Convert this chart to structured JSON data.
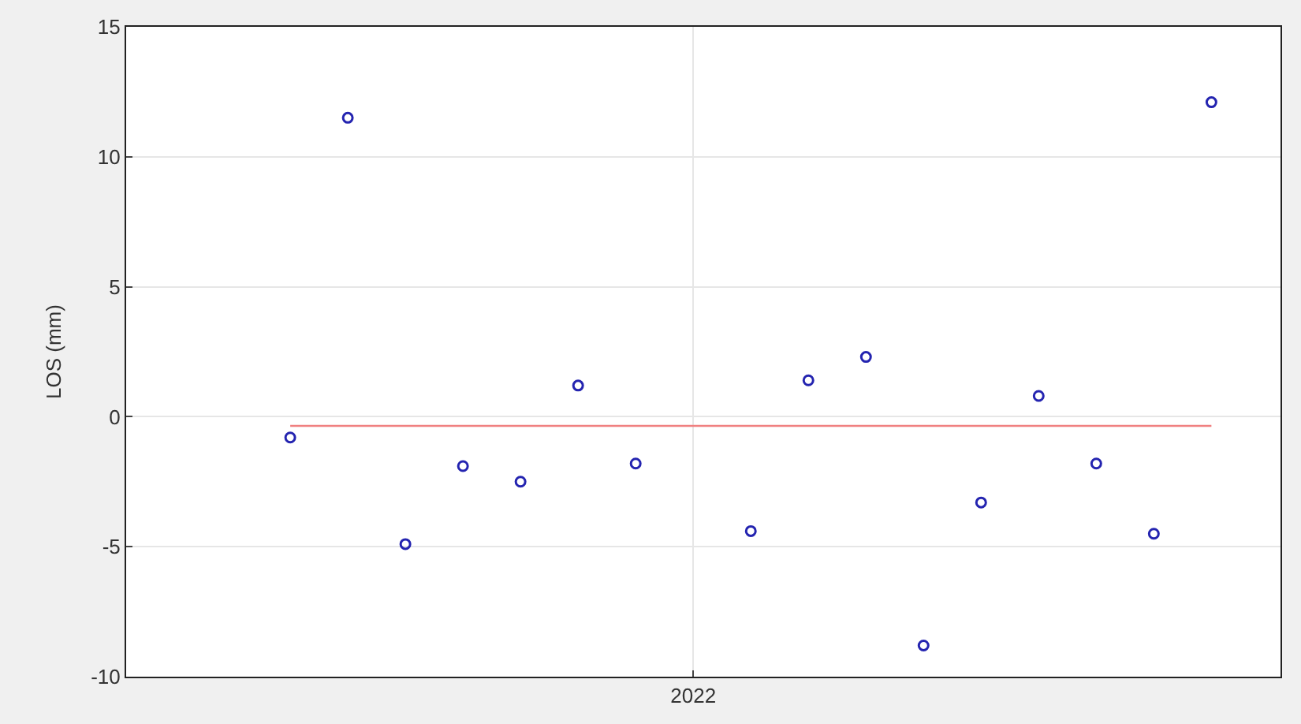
{
  "chart_data": {
    "type": "scatter",
    "ylabel": "LOS (mm)",
    "categories": [
      null,
      null,
      null,
      null,
      null,
      null,
      null,
      "2022",
      null,
      null,
      null,
      null,
      null,
      null,
      null,
      null,
      null
    ],
    "ylim": [
      -10,
      15
    ],
    "yticks": [
      -10,
      -5,
      0,
      5,
      10,
      15
    ],
    "grid": true,
    "marker": "circle",
    "series": [
      {
        "color": "#2424b0",
        "values": [
          -0.8,
          11.5,
          -4.9,
          -1.9,
          -2.5,
          1.2,
          -1.8,
          null,
          -4.4,
          1.4,
          2.3,
          -8.8,
          -3.3,
          0.8,
          -1.8,
          -4.5,
          12.1
        ]
      },
      {
        "type": "line",
        "color": "#f08080",
        "marker": "none",
        "values": [
          -0.35,
          -0.35,
          -0.35,
          -0.35,
          -0.35,
          -0.35,
          -0.35,
          -0.35,
          -0.35,
          -0.35,
          -0.35,
          -0.35,
          -0.35,
          -0.35,
          -0.35,
          -0.35,
          -0.35
        ]
      }
    ]
  }
}
